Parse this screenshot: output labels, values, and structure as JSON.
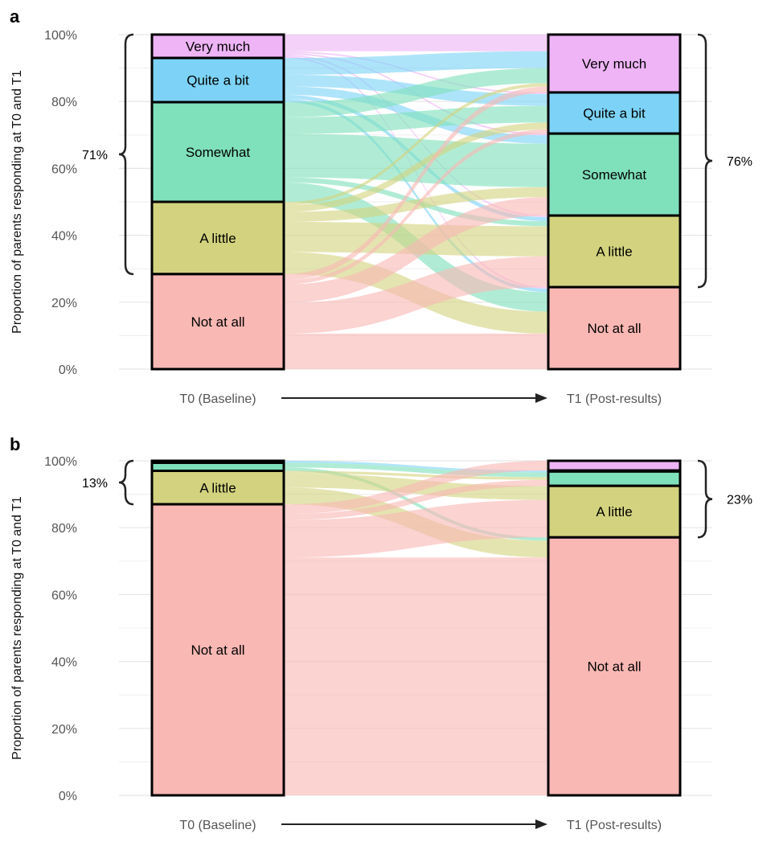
{
  "colors": {
    "Very much": "#eeb4f6",
    "Quite a bit": "#7dd3f7",
    "Somewhat": "#7fe0bc",
    "A little": "#d3d37f",
    "Not at all": "#f9b8b4"
  },
  "chart_data": [
    {
      "type": "alluvial",
      "panel_label": "a",
      "ylabel": "Proportion of parents responding at T0 and T1",
      "yticks": [
        "0%",
        "20%",
        "40%",
        "60%",
        "80%",
        "100%"
      ],
      "ylim": [
        0,
        100
      ],
      "grid": true,
      "axes": [
        "T0 (Baseline)",
        "T1 (Post-results)"
      ],
      "categories": [
        "Very much",
        "Quite a bit",
        "Somewhat",
        "A little",
        "Not at all"
      ],
      "t0_values": [
        7.0,
        13.2,
        29.8,
        21.6,
        28.4
      ],
      "t1_values": [
        17.3,
        12.3,
        24.5,
        21.4,
        24.5
      ],
      "t0_labels": [
        "Very much",
        "Quite a bit",
        "Somewhat",
        "A little",
        "Not at all"
      ],
      "t1_labels": [
        "Very much",
        "Quite a bit",
        "Somewhat",
        "A little",
        "Not at all"
      ],
      "flows": [
        [
          5.0,
          0.5,
          0.5,
          0.5,
          0.5
        ],
        [
          5.0,
          3.5,
          2.5,
          1.2,
          1.0
        ],
        [
          4.5,
          5.0,
          13.0,
          1.5,
          5.8
        ],
        [
          1.0,
          2.0,
          3.0,
          9.0,
          6.6
        ],
        [
          1.8,
          1.3,
          5.5,
          9.2,
          10.6
        ]
      ],
      "t0_bracket": {
        "label": "71%",
        "from": "A little",
        "to": "Very much"
      },
      "t1_bracket": {
        "label": "76%",
        "from": "A little",
        "to": "Very much"
      }
    },
    {
      "type": "alluvial",
      "panel_label": "b",
      "ylabel": "Proportion of parents responding at T0 and T1",
      "yticks": [
        "0%",
        "20%",
        "40%",
        "60%",
        "80%",
        "100%"
      ],
      "ylim": [
        0,
        100
      ],
      "grid": true,
      "axes": [
        "T0 (Baseline)",
        "T1 (Post-results)"
      ],
      "categories": [
        "Very much",
        "Quite a bit",
        "Somewhat",
        "A little",
        "Not at all"
      ],
      "t0_values": [
        0,
        0.6,
        2.4,
        10.0,
        87.0
      ],
      "t1_values": [
        2.9,
        0.3,
        4.3,
        15.4,
        77.1
      ],
      "t0_labels": [
        "",
        "",
        "",
        "A little",
        "Not at all"
      ],
      "t1_labels": [
        "",
        "",
        "",
        "A little",
        "Not at all"
      ],
      "flows": [
        [
          0,
          0,
          0,
          0,
          0
        ],
        [
          0,
          0.3,
          0.3,
          0,
          0
        ],
        [
          0,
          0,
          1.4,
          0,
          1.0
        ],
        [
          0,
          0,
          0.8,
          4.2,
          5.0
        ],
        [
          2.9,
          0,
          1.8,
          11.2,
          71.1
        ]
      ],
      "t0_bracket": {
        "label": "13%",
        "from": "A little",
        "to": "Very much"
      },
      "t1_bracket": {
        "label": "23%",
        "from": "A little",
        "to": "Very much"
      }
    }
  ]
}
